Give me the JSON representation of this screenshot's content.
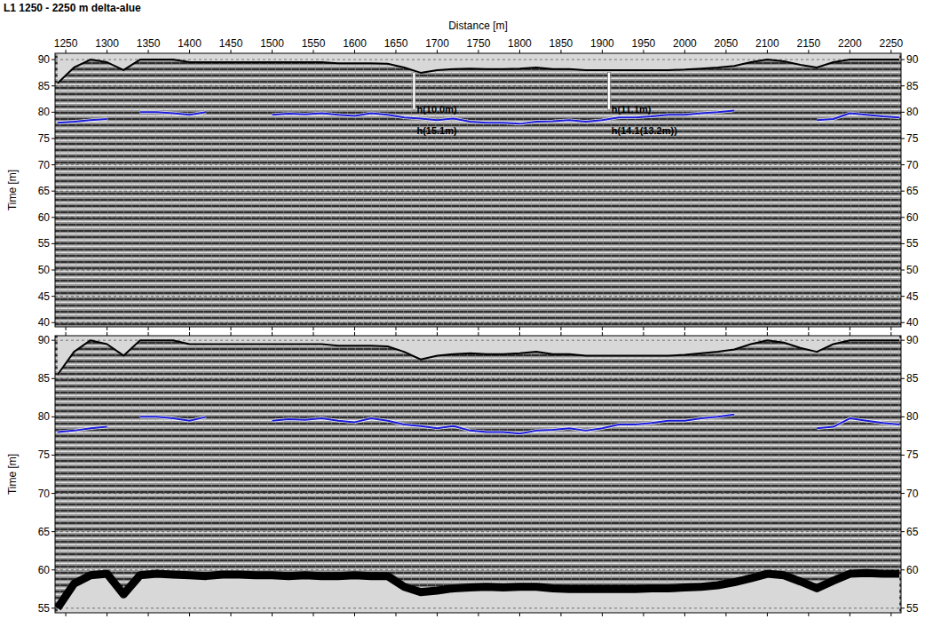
{
  "chart_data": [
    {
      "type": "line",
      "title": "L1 1250 - 2250 m delta-alue",
      "x_label": "Distance [m]",
      "y_label": "Time [m]",
      "xlim": [
        1237,
        2262
      ],
      "xticks": [
        1250,
        1300,
        1350,
        1400,
        1450,
        1500,
        1550,
        1600,
        1650,
        1700,
        1750,
        1800,
        1850,
        1900,
        1950,
        2000,
        2050,
        2100,
        2150,
        2200,
        2250
      ],
      "ylim": [
        39.2,
        91.2
      ],
      "yticks": [
        40,
        45,
        50,
        55,
        60,
        65,
        70,
        75,
        80,
        85,
        90
      ],
      "grid": true,
      "x": [
        1240,
        1260,
        1280,
        1300,
        1320,
        1340,
        1360,
        1380,
        1400,
        1420,
        1440,
        1460,
        1480,
        1500,
        1520,
        1540,
        1560,
        1580,
        1600,
        1620,
        1640,
        1660,
        1680,
        1700,
        1720,
        1740,
        1760,
        1780,
        1800,
        1820,
        1840,
        1860,
        1880,
        1900,
        1920,
        1940,
        1960,
        1980,
        2000,
        2020,
        2040,
        2060,
        2080,
        2100,
        2120,
        2140,
        2160,
        2180,
        2200,
        2220,
        2240,
        2260
      ],
      "series": [
        {
          "color": "#000000",
          "line_style": "solid",
          "values": [
            85.5,
            88.5,
            90,
            89.5,
            88,
            90,
            90,
            90,
            89.5,
            89.5,
            89.5,
            89.5,
            89.5,
            89.5,
            89.5,
            89.5,
            89.5,
            89.3,
            89.3,
            89.3,
            89.2,
            88.5,
            87.5,
            88,
            88.2,
            88.3,
            88.2,
            88.2,
            88.3,
            88.5,
            88.2,
            88.2,
            88,
            88,
            88,
            88,
            88,
            88,
            88.1,
            88.3,
            88.5,
            88.8,
            89.5,
            90,
            89.7,
            89,
            88.5,
            89.5,
            90,
            90,
            90,
            90
          ]
        },
        {
          "color": "#1a1adc",
          "line_style": "solid",
          "values": [
            78,
            78.2,
            78.5,
            78.7,
            null,
            80,
            80,
            79.8,
            79.5,
            80,
            null,
            null,
            null,
            79.5,
            79.7,
            79.6,
            79.8,
            79.5,
            79.3,
            79.8,
            79.5,
            79,
            78.8,
            78.5,
            78.8,
            78.2,
            78,
            78,
            77.8,
            78.2,
            78.3,
            78.5,
            78.2,
            78.5,
            79,
            79,
            79.2,
            79.5,
            79.5,
            79.8,
            80,
            80.3,
            null,
            null,
            null,
            null,
            78.5,
            78.7,
            79.8,
            79.5,
            79.2,
            79
          ]
        }
      ],
      "annotations": [
        {
          "text": "h(10.0m)",
          "x": 1672,
          "y": 80.5
        },
        {
          "text": "h(15.1m)",
          "x": 1672,
          "y": 76.5
        },
        {
          "text": "h(11.1m)",
          "x": 1908,
          "y": 80.5
        },
        {
          "text": "h(14.1(13.2m))",
          "x": 1908,
          "y": 76.5
        }
      ]
    },
    {
      "type": "line",
      "y_label": "Time [m]",
      "xlim": [
        1237,
        2262
      ],
      "xticks": [
        1250,
        1300,
        1350,
        1400,
        1450,
        1500,
        1550,
        1600,
        1650,
        1700,
        1750,
        1800,
        1850,
        1900,
        1950,
        2000,
        2050,
        2100,
        2150,
        2200,
        2250
      ],
      "tick_labels": "y",
      "ylim": [
        54.4,
        90.6
      ],
      "yticks": [
        55,
        60,
        65,
        70,
        75,
        80,
        85,
        90
      ],
      "grid": true,
      "x": [
        1240,
        1260,
        1280,
        1300,
        1320,
        1340,
        1360,
        1380,
        1400,
        1420,
        1440,
        1460,
        1480,
        1500,
        1520,
        1540,
        1560,
        1580,
        1600,
        1620,
        1640,
        1660,
        1680,
        1700,
        1720,
        1740,
        1760,
        1780,
        1800,
        1820,
        1840,
        1860,
        1880,
        1900,
        1920,
        1940,
        1960,
        1980,
        2000,
        2020,
        2040,
        2060,
        2080,
        2100,
        2120,
        2140,
        2160,
        2180,
        2200,
        2220,
        2240,
        2260
      ],
      "series": [
        {
          "color": "#000000",
          "line_style": "solid",
          "values": [
            85.5,
            88.5,
            90,
            89.5,
            88,
            90,
            90,
            90,
            89.5,
            89.5,
            89.5,
            89.5,
            89.5,
            89.5,
            89.5,
            89.5,
            89.5,
            89.3,
            89.3,
            89.3,
            89.2,
            88.5,
            87.5,
            88,
            88.2,
            88.3,
            88.2,
            88.2,
            88.3,
            88.5,
            88.2,
            88.2,
            88,
            88,
            88,
            88,
            88,
            88,
            88.1,
            88.3,
            88.5,
            88.8,
            89.5,
            90,
            89.7,
            89,
            88.5,
            89.5,
            90,
            90,
            90,
            90
          ]
        },
        {
          "color": "#1a1adc",
          "line_style": "solid",
          "values": [
            78,
            78.2,
            78.5,
            78.7,
            null,
            80,
            80,
            79.8,
            79.5,
            80,
            null,
            null,
            null,
            79.5,
            79.7,
            79.6,
            79.8,
            79.5,
            79.3,
            79.8,
            79.5,
            79,
            78.8,
            78.5,
            78.8,
            78.2,
            78,
            78,
            77.8,
            78.2,
            78.3,
            78.5,
            78.2,
            78.5,
            79,
            79,
            79.2,
            79.5,
            79.5,
            79.8,
            80,
            80.3,
            null,
            null,
            null,
            null,
            78.5,
            78.7,
            79.8,
            79.5,
            79.2,
            79
          ]
        },
        {
          "color": "#000000",
          "line_style": "thick",
          "values": [
            55,
            58.2,
            59.3,
            59.5,
            56.8,
            59.3,
            59.5,
            59.4,
            59.3,
            59.2,
            59.4,
            59.4,
            59.3,
            59.3,
            59.2,
            59.3,
            59.2,
            59.2,
            59.3,
            59.2,
            59.2,
            57.8,
            57.1,
            57.3,
            57.6,
            57.7,
            57.8,
            57.7,
            57.8,
            57.8,
            57.6,
            57.5,
            57.5,
            57.5,
            57.5,
            57.5,
            57.6,
            57.6,
            57.7,
            57.8,
            58,
            58.4,
            58.9,
            59.5,
            59.3,
            58.5,
            57.6,
            58.6,
            59.5,
            59.6,
            59.5,
            59.5
          ]
        }
      ]
    }
  ]
}
